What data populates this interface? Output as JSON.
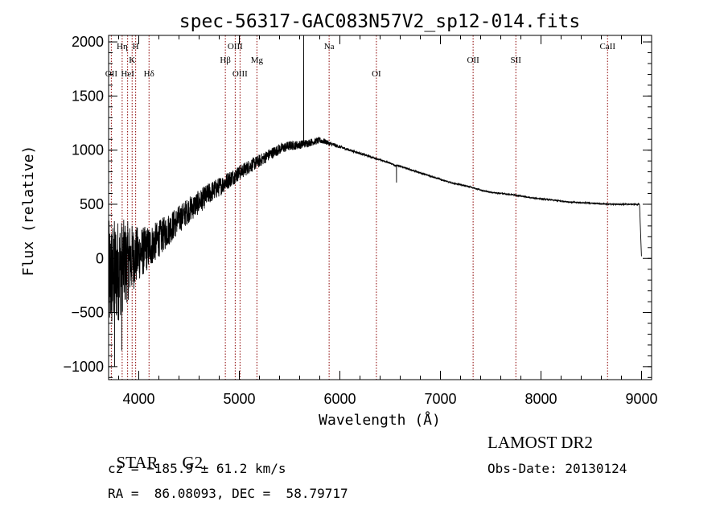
{
  "chart_data": {
    "type": "line",
    "title": "spec-56317-GAC083N57V2_sp12-014.fits",
    "xlabel": "Wavelength (Å)",
    "ylabel": "Flux (relative)",
    "xlim": [
      3700,
      9100
    ],
    "ylim": [
      -1120,
      2060
    ],
    "xticks": [
      4000,
      5000,
      6000,
      7000,
      8000,
      9000
    ],
    "xtick_labels": [
      "4000",
      "5000",
      "6000",
      "7000",
      "8000",
      "9000"
    ],
    "yticks": [
      -1000,
      -500,
      0,
      500,
      1000,
      1500,
      2000
    ],
    "ytick_labels": [
      "−1000",
      "−500",
      "0",
      "500",
      "1000",
      "1500",
      "2000"
    ],
    "grid": false,
    "series": [
      {
        "x": [
          3700,
          3750,
          3800,
          3850,
          3900,
          3950,
          4000,
          4100,
          4200,
          4300,
          4400,
          4500,
          4600,
          4700,
          4800,
          4900,
          5000,
          5100,
          5200,
          5300,
          5400,
          5500,
          5600,
          5700,
          5800,
          5850,
          5900,
          6000,
          6100,
          6200,
          6300,
          6400,
          6500,
          6550,
          6600,
          6700,
          6800,
          6900,
          7000,
          7100,
          7200,
          7300,
          7400,
          7500,
          7600,
          7700,
          7800,
          7900,
          8000,
          8100,
          8200,
          8300,
          8400,
          8500,
          8600,
          8700,
          8800,
          8900,
          8980,
          9000
        ],
        "y": [
          -200,
          -150,
          -100,
          -60,
          -20,
          10,
          40,
          100,
          180,
          270,
          360,
          450,
          520,
          600,
          660,
          730,
          790,
          850,
          900,
          960,
          1010,
          1040,
          1050,
          1070,
          1090,
          1080,
          1060,
          1030,
          1000,
          970,
          940,
          910,
          880,
          860,
          850,
          820,
          790,
          760,
          730,
          700,
          680,
          660,
          630,
          610,
          600,
          590,
          575,
          560,
          550,
          540,
          530,
          520,
          515,
          510,
          505,
          500,
          500,
          500,
          500,
          0
        ],
        "noise": [
          550,
          520,
          480,
          420,
          360,
          300,
          250,
          200,
          170,
          150,
          130,
          120,
          110,
          100,
          90,
          80,
          70,
          65,
          60,
          55,
          50,
          45,
          40,
          35,
          30,
          25,
          20,
          15,
          12,
          10,
          8,
          8,
          8,
          8,
          8,
          8,
          7,
          7,
          7,
          6,
          6,
          6,
          6,
          6,
          6,
          6,
          6,
          6,
          6,
          6,
          6,
          6,
          6,
          6,
          6,
          6,
          6,
          6,
          6,
          0
        ],
        "features": [
          {
            "x": 5640,
            "y": 2060
          },
          {
            "x": 6563,
            "y": 700
          },
          {
            "x": 3830,
            "y": -850
          },
          {
            "x": 3760,
            "y": -1000
          }
        ],
        "color": "#000000"
      }
    ],
    "lines": [
      {
        "label": "OII",
        "x": 3727,
        "row": 3
      },
      {
        "label": "Hη",
        "x": 3835,
        "row": 1
      },
      {
        "label": "HeI",
        "x": 3889,
        "row": 3
      },
      {
        "label": "K",
        "x": 3934,
        "row": 2
      },
      {
        "label": "H",
        "x": 3969,
        "row": 1
      },
      {
        "label": "Hδ",
        "x": 4102,
        "row": 3
      },
      {
        "label": "Hβ",
        "x": 4861,
        "row": 2
      },
      {
        "label": "OIII",
        "x": 4959,
        "row": 1
      },
      {
        "label": "OIII",
        "x": 5007,
        "row": 3
      },
      {
        "label": "Mg",
        "x": 5175,
        "row": 2
      },
      {
        "label": "Na",
        "x": 5893,
        "row": 1
      },
      {
        "label": "OI",
        "x": 6363,
        "row": 3
      },
      {
        "label": "OII",
        "x": 7325,
        "row": 2
      },
      {
        "label": "SII",
        "x": 7750,
        "row": 2
      },
      {
        "label": "CaII",
        "x": 8662,
        "row": 1
      }
    ],
    "line_color": "#8b0000"
  },
  "info": {
    "class": "STAR",
    "subclass": "G2",
    "survey": "LAMOST DR2",
    "cz": "cz = −185.9 ± 61.2 km/s",
    "obsdate": "Obs-Date: 20130124",
    "radec": "RA =  86.08093, DEC =  58.79717"
  }
}
